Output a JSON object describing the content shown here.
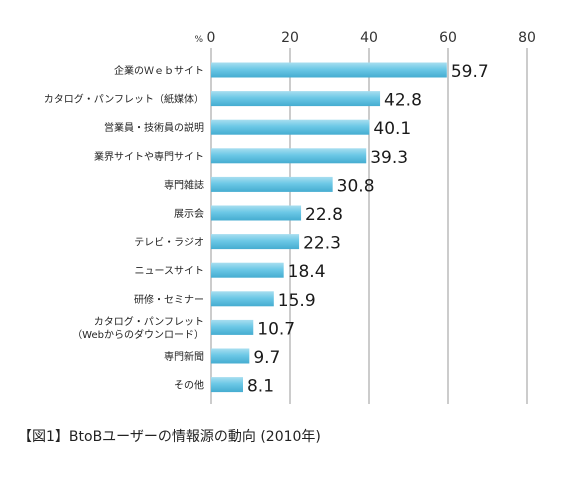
{
  "chart_data": {
    "type": "bar",
    "orientation": "horizontal",
    "unit": "%",
    "xlim": [
      0,
      80
    ],
    "ticks": [
      "0",
      "20",
      "40",
      "60",
      "80"
    ],
    "grid": true,
    "categories": [
      [
        "企業のＷｅｂサイト"
      ],
      [
        "カタログ・パンフレット（紙媒体）"
      ],
      [
        "営業員・技術員の説明"
      ],
      [
        "業界サイトや専門サイト"
      ],
      [
        "専門雑誌"
      ],
      [
        "展示会"
      ],
      [
        "テレビ・ラジオ"
      ],
      [
        "ニュースサイト"
      ],
      [
        "研修・セミナー"
      ],
      [
        "カタログ・パンフレット",
        "（Webからのダウンロード）"
      ],
      [
        "専門新聞"
      ],
      [
        "その他"
      ]
    ],
    "values": [
      59.7,
      42.8,
      40.1,
      39.3,
      30.8,
      22.8,
      22.3,
      18.4,
      15.9,
      10.7,
      9.7,
      8.1
    ],
    "value_labels": [
      "59.7",
      "42.8",
      "40.1",
      "39.3",
      "30.8",
      "22.8",
      "22.3",
      "18.4",
      "15.9",
      "10.7",
      "9.7",
      "8.1"
    ],
    "bar_color": "#6cc8e6",
    "bar_color_light": "#a8def0",
    "bar_color_dark": "#45acd0"
  },
  "caption": "【図1】BtoBユーザーの情報源の動向 (2010年)"
}
